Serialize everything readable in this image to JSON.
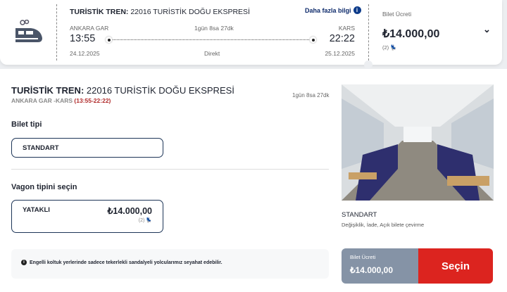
{
  "header": {
    "title_bold": "TURİSTİK TREN:",
    "title_rest": " 22016 TURİSTİK DOĞU EKSPRESİ",
    "more_info": "Daha fazla bilgi",
    "from": "ANKARA GAR",
    "to": "KARS",
    "duration": "1gün 8sa 27dk",
    "dep_time": "13:55",
    "arr_time": "22:22",
    "dep_date": "24.12.2025",
    "arr_date": "25.12.2025",
    "type": "Direkt",
    "fare_label": "Bilet Ücreti",
    "fare": "₺14.000,00",
    "seats": "(2)"
  },
  "detail": {
    "title_bold": "TURİSTİK TREN:",
    "title_rest": " 22016 TURİSTİK DOĞU EKSPRESİ",
    "route": "ANKARA GAR -KARS ",
    "route_time": "(13:55-22:22)",
    "duration": "1gün 8sa 27dk",
    "ticket_type_label": "Bilet tipi",
    "ticket_type": "STANDART",
    "wagon_label": "Vagon tipini seçin",
    "wagon": {
      "name": "YATAKLI",
      "price": "₺14.000,00",
      "seats": "(2)"
    },
    "notice": "Engelli koltuk yerlerinde sadece tekerlekli sandalyeli yolcularımız seyahat edebilir.",
    "class_name": "STANDART",
    "class_desc": "Değişiklik, İade, Açık bilete çevirme",
    "fare_label": "Bilet Ücreti",
    "fare": "₺14.000,00",
    "select": "Seçin"
  },
  "colors": {
    "navy": "#1d3557",
    "red": "#dc241f",
    "gray_panel": "#8593a6"
  }
}
